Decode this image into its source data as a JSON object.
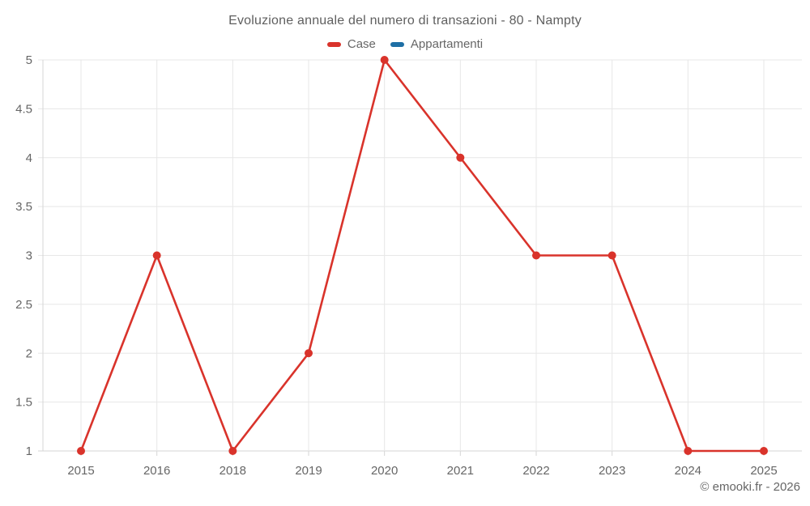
{
  "header": {
    "title": "Evoluzione annuale del numero di transazioni - 80 - Nampty"
  },
  "footer": {
    "attribution": "© emooki.fr - 2026"
  },
  "colors": {
    "case_red": "#d9332b",
    "appartamenti_blue": "#1e6fa5",
    "gridline": "#e7e7e7",
    "axis_line": "#d6d6d6",
    "tick_label": "#666666"
  },
  "chart_data": {
    "type": "line",
    "title": "Evoluzione annuale del numero di transazioni - 80 - Nampty",
    "categories": [
      "2015",
      "2016",
      "2018",
      "2019",
      "2020",
      "2021",
      "2022",
      "2023",
      "2024",
      "2025"
    ],
    "series": [
      {
        "name": "Case",
        "color": "#d9332b",
        "values": [
          1,
          3,
          1,
          2,
          5,
          4,
          3,
          3,
          1,
          1
        ]
      },
      {
        "name": "Appartamenti",
        "color": "#1e6fa5",
        "values": []
      }
    ],
    "xlabel": "",
    "ylabel": "",
    "ylim": [
      1,
      5
    ],
    "ytick_step": 0.5,
    "grid": true,
    "legend_position": "top",
    "attribution": "© emooki.fr - 2026"
  }
}
